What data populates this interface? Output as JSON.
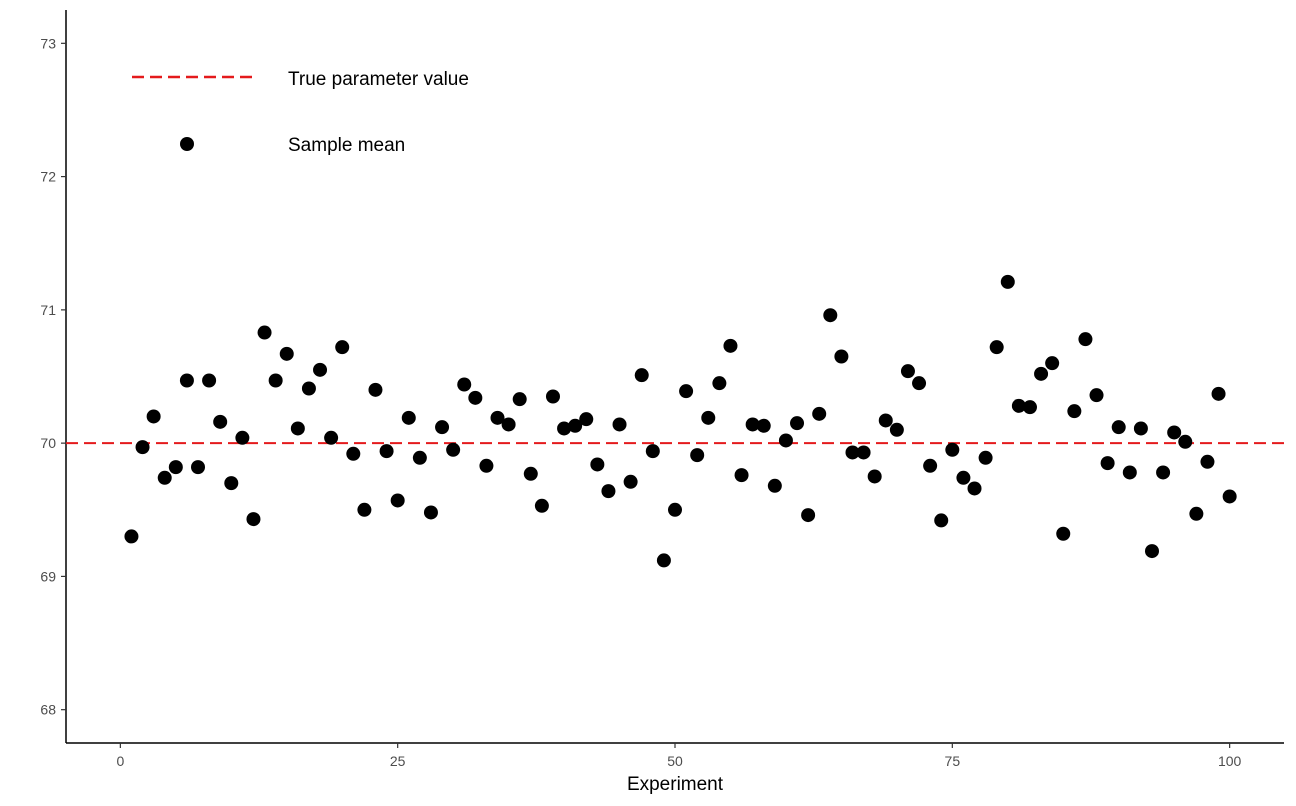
{
  "chart_data": {
    "type": "scatter",
    "title": "",
    "xlabel": "Experiment",
    "ylabel": "",
    "xlim": [
      -4.9,
      104.9
    ],
    "ylim": [
      67.75,
      73.25
    ],
    "xticks": [
      0,
      25,
      50,
      75,
      100
    ],
    "xtick_labels": [
      "0",
      "25",
      "50",
      "75",
      "100"
    ],
    "yticks": [
      68,
      69,
      70,
      71,
      72,
      73
    ],
    "ytick_labels": [
      "68",
      "69",
      "70",
      "71",
      "72",
      "73"
    ],
    "grid": false,
    "legend_position": "top-left",
    "reference_line": {
      "name": "True parameter value",
      "value": 70,
      "color": "#e41a1c",
      "style": "dashed"
    },
    "series": [
      {
        "name": "Sample mean",
        "color": "#000000",
        "x": [
          1,
          2,
          3,
          4,
          5,
          6,
          7,
          8,
          9,
          10,
          11,
          12,
          13,
          14,
          15,
          16,
          17,
          18,
          19,
          20,
          21,
          22,
          23,
          24,
          25,
          26,
          27,
          28,
          29,
          30,
          31,
          32,
          33,
          34,
          35,
          36,
          37,
          38,
          39,
          40,
          41,
          42,
          43,
          44,
          45,
          46,
          47,
          48,
          49,
          50,
          51,
          52,
          53,
          54,
          55,
          56,
          57,
          58,
          59,
          60,
          61,
          62,
          63,
          64,
          65,
          66,
          67,
          68,
          69,
          70,
          71,
          72,
          73,
          74,
          75,
          76,
          77,
          78,
          79,
          80,
          81,
          82,
          83,
          84,
          85,
          86,
          87,
          88,
          89,
          90,
          91,
          92,
          93,
          94,
          95,
          96,
          97,
          98,
          99,
          100
        ],
        "y": [
          69.3,
          69.97,
          70.2,
          69.74,
          69.82,
          70.47,
          69.82,
          70.47,
          70.16,
          69.7,
          70.04,
          69.43,
          70.83,
          70.47,
          70.67,
          70.11,
          70.41,
          70.55,
          70.04,
          70.72,
          69.92,
          69.5,
          70.4,
          69.94,
          69.57,
          70.19,
          69.89,
          69.48,
          70.12,
          69.95,
          70.44,
          70.34,
          69.83,
          70.19,
          70.14,
          70.33,
          69.77,
          69.53,
          70.35,
          70.11,
          70.13,
          70.18,
          69.84,
          69.64,
          70.14,
          69.71,
          70.51,
          69.94,
          69.12,
          69.5,
          70.39,
          69.91,
          70.19,
          70.45,
          70.73,
          69.76,
          70.14,
          70.13,
          69.68,
          70.02,
          70.15,
          69.46,
          70.22,
          70.96,
          70.65,
          69.93,
          69.93,
          69.75,
          70.17,
          70.1,
          70.54,
          70.45,
          69.83,
          69.42,
          69.95,
          69.74,
          69.66,
          69.89,
          70.72,
          71.21,
          70.28,
          70.27,
          70.52,
          70.6,
          69.32,
          70.24,
          70.78,
          70.36,
          69.85,
          70.12,
          69.78,
          70.11,
          69.19,
          69.78,
          70.08,
          70.01,
          69.47,
          69.86,
          70.37,
          69.6
        ]
      }
    ]
  }
}
